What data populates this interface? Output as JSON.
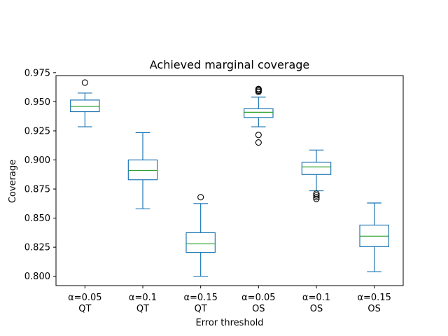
{
  "chart_data": {
    "type": "box",
    "title": "Achieved marginal coverage",
    "xlabel": "Error threshold",
    "ylabel": "Coverage",
    "ylim": [
      0.792,
      0.9725
    ],
    "yticks": [
      "0.800",
      "0.825",
      "0.850",
      "0.875",
      "0.900",
      "0.925",
      "0.950",
      "0.975"
    ],
    "grid": false,
    "legend": "none",
    "box_color": "#1f77b4",
    "median_color": "#2ca02c",
    "categories": [
      [
        "α=0.05",
        "QT"
      ],
      [
        "α=0.1",
        "QT"
      ],
      [
        "α=0.15",
        "QT"
      ],
      [
        "α=0.05",
        "OS"
      ],
      [
        "α=0.1",
        "OS"
      ],
      [
        "α=0.15",
        "OS"
      ]
    ],
    "boxes": [
      {
        "whisker_low": 0.9285,
        "q1": 0.9415,
        "median": 0.946,
        "q3": 0.9515,
        "whisker_high": 0.9575,
        "outliers": [
          0.9665
        ]
      },
      {
        "whisker_low": 0.858,
        "q1": 0.883,
        "median": 0.891,
        "q3": 0.9,
        "whisker_high": 0.9235,
        "outliers": []
      },
      {
        "whisker_low": 0.8,
        "q1": 0.8205,
        "median": 0.828,
        "q3": 0.8375,
        "whisker_high": 0.8625,
        "outliers": [
          0.868
        ]
      },
      {
        "whisker_low": 0.9285,
        "q1": 0.9365,
        "median": 0.941,
        "q3": 0.944,
        "whisker_high": 0.954,
        "outliers": [
          0.915,
          0.9215,
          0.9585,
          0.9595,
          0.9605,
          0.961
        ]
      },
      {
        "whisker_low": 0.8735,
        "q1": 0.8875,
        "median": 0.894,
        "q3": 0.898,
        "whisker_high": 0.9085,
        "outliers": [
          0.8665,
          0.868,
          0.8695,
          0.871
        ]
      },
      {
        "whisker_low": 0.804,
        "q1": 0.8255,
        "median": 0.8345,
        "q3": 0.844,
        "whisker_high": 0.863,
        "outliers": []
      }
    ]
  }
}
